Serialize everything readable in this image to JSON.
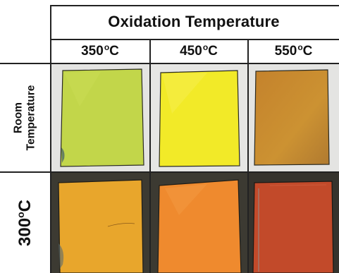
{
  "header": {
    "title": "Oxidation Temperature"
  },
  "columns": [
    {
      "value": "350",
      "sup": "o",
      "unit": "C"
    },
    {
      "value": "450",
      "sup": "o",
      "unit": "C"
    },
    {
      "value": "550",
      "sup": "o",
      "unit": "C"
    }
  ],
  "rows": [
    {
      "label_line1": "Room",
      "label_line2": "Temperature"
    },
    {
      "value": "300",
      "sup": "o",
      "unit": "C"
    }
  ],
  "colors": {
    "rt_350": "#c4d64a",
    "rt_450": "#f0e82a",
    "rt_550": "#c8882e",
    "hot_350": "#e8a42c",
    "hot_450": "#ee8a2c",
    "hot_550": "#c24a2a",
    "bg_light": "#e6e6e4",
    "bg_dark": "#3a3a34"
  }
}
